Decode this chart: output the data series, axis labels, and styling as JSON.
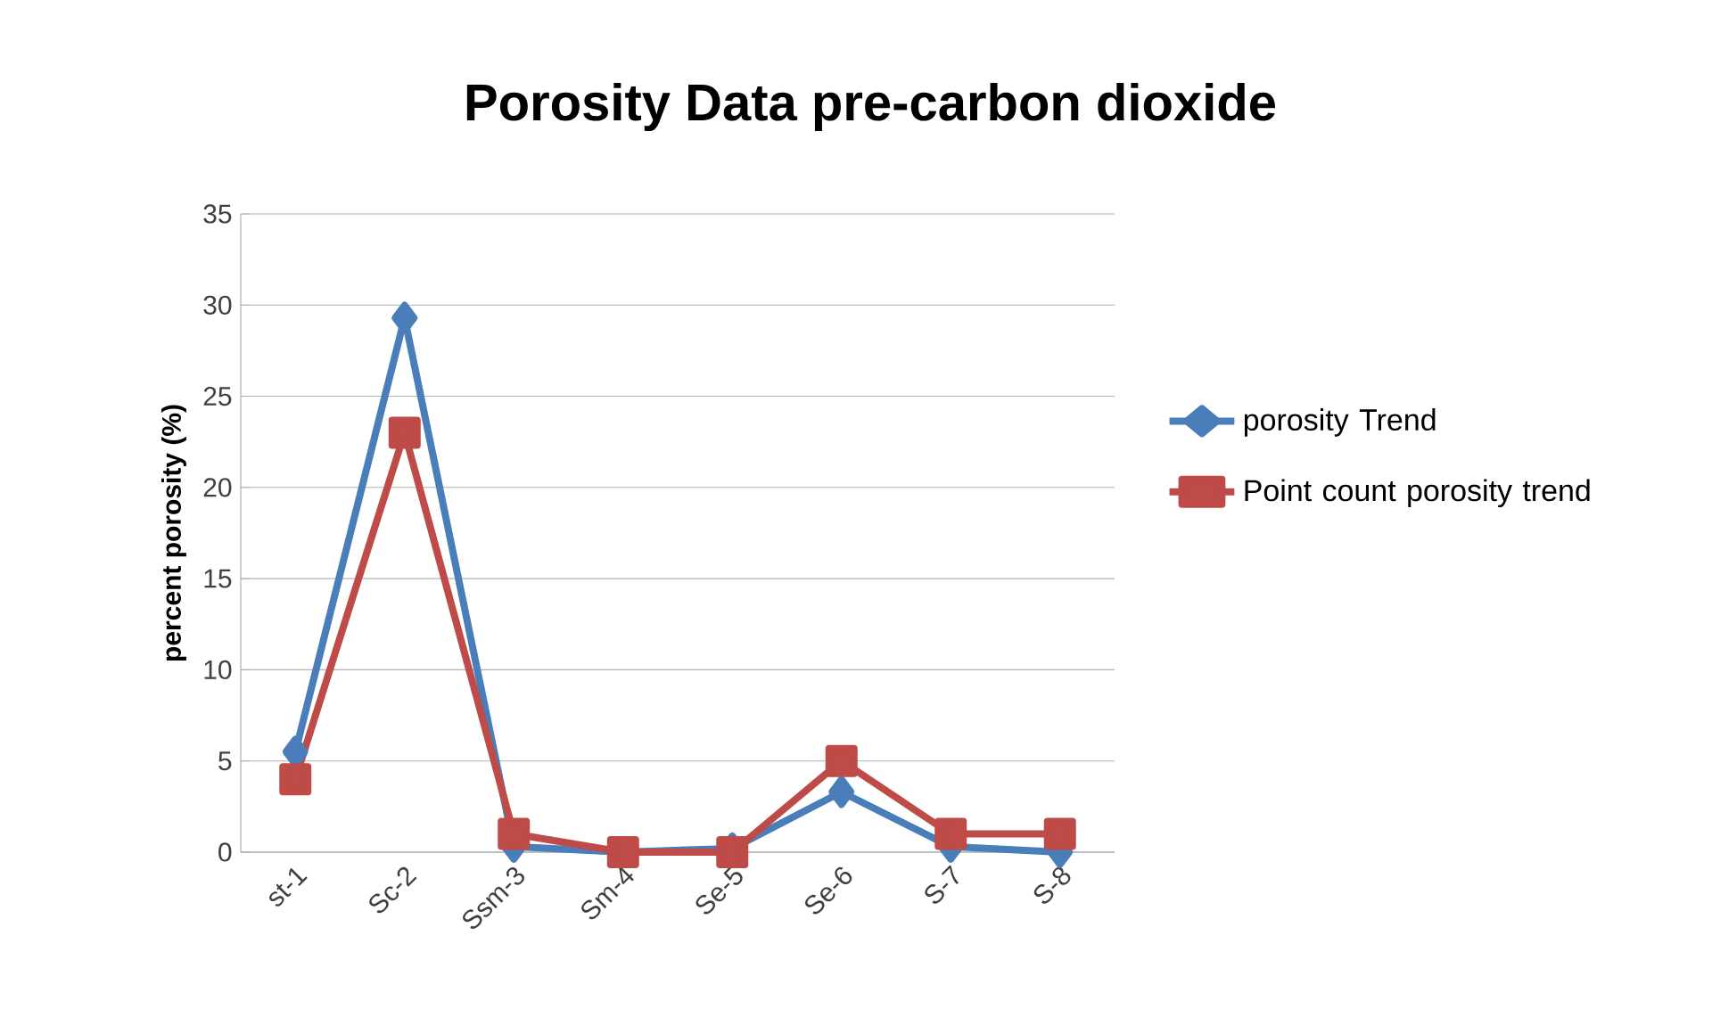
{
  "chart_data": {
    "type": "line",
    "title": "Porosity Data pre-carbon dioxide",
    "ylabel": "percent porosity (%)",
    "categories": [
      "st-1",
      "Sc-2",
      "Ssm-3",
      "Sm-4",
      "Se-5",
      "Se-6",
      "S-7",
      "S-8"
    ],
    "series": [
      {
        "name": "porosity Trend",
        "color": "#4a7ebb",
        "marker": "diamond",
        "values": [
          5.5,
          29.3,
          0.3,
          0,
          0.2,
          3.3,
          0.3,
          0
        ]
      },
      {
        "name": "Point count porosity trend",
        "color": "#be4b48",
        "marker": "square",
        "values": [
          4,
          23,
          1,
          0,
          0,
          5,
          1,
          1
        ]
      }
    ],
    "ylim": [
      0,
      35
    ],
    "yticks": [
      0,
      5,
      10,
      15,
      20,
      25,
      30,
      35
    ],
    "grid": "y",
    "legend": "right"
  }
}
